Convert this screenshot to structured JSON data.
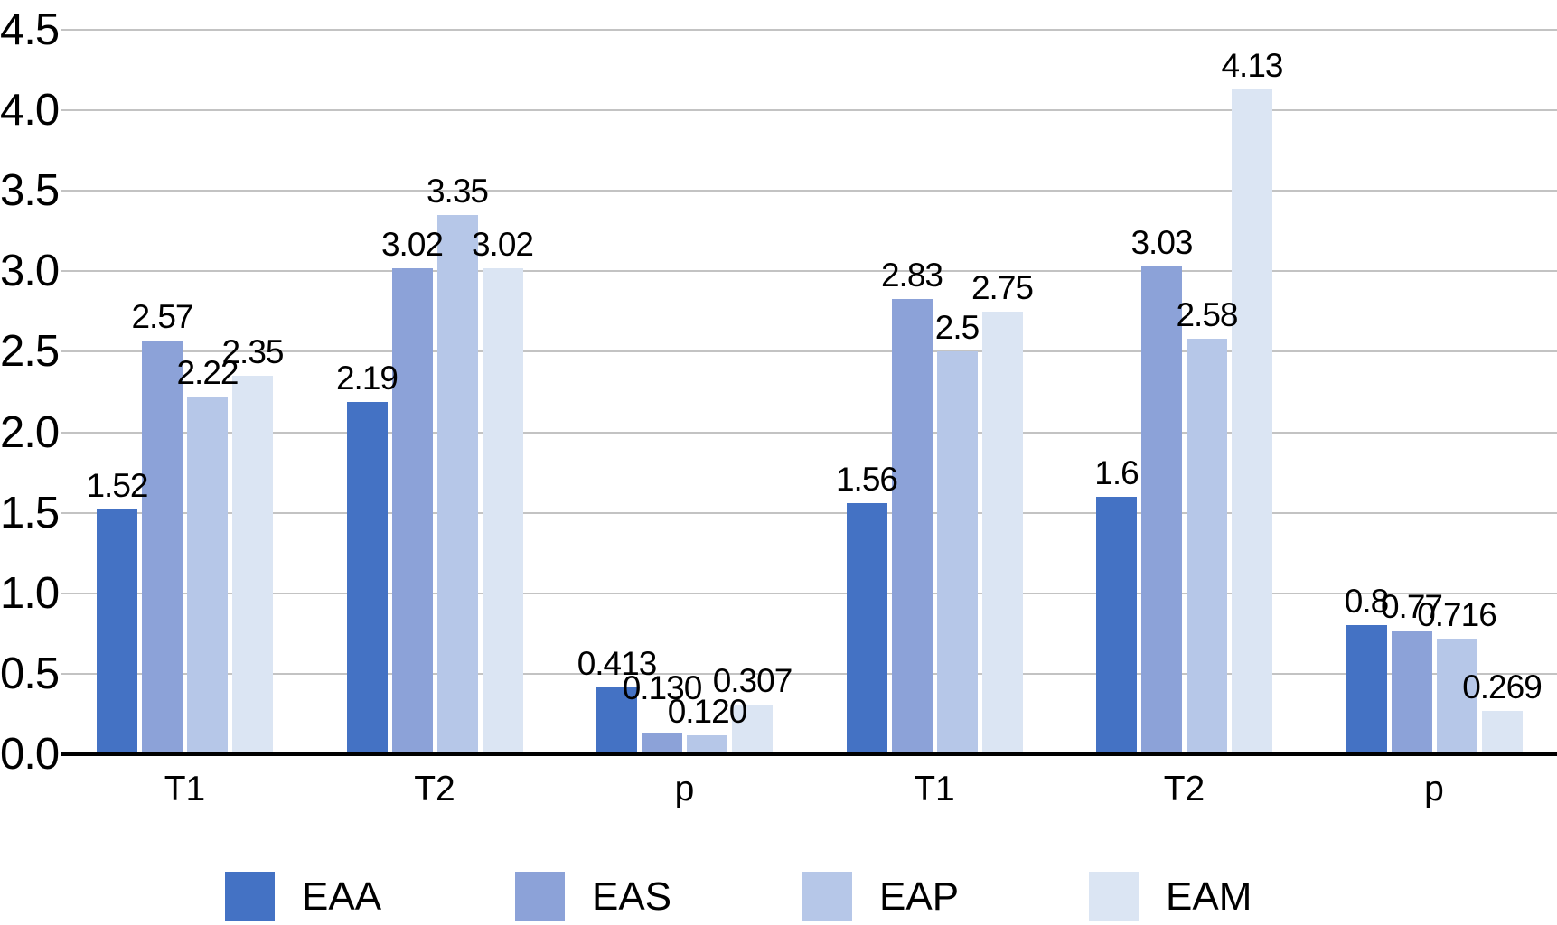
{
  "chart_data": {
    "type": "bar",
    "title": "",
    "xlabel": "",
    "ylabel": "",
    "categories": [
      "T1",
      "T2",
      "p",
      "T1",
      "T2",
      "p"
    ],
    "series": [
      {
        "name": "EAA",
        "color": "#4472C4",
        "values": [
          1.52,
          2.19,
          0.413,
          1.56,
          1.6,
          0.8
        ],
        "labels": [
          "1.52",
          "2.19",
          "0.413",
          "1.56",
          "1.6",
          "0.8"
        ]
      },
      {
        "name": "EAS",
        "color": "#8CA2D8",
        "values": [
          2.57,
          3.02,
          0.13,
          2.83,
          3.03,
          0.77
        ],
        "labels": [
          "2.57",
          "3.02",
          "0.130",
          "2.83",
          "3.03",
          "0.77"
        ]
      },
      {
        "name": "EAP",
        "color": "#B6C7E8",
        "values": [
          2.22,
          3.35,
          0.12,
          2.5,
          2.58,
          0.716
        ],
        "labels": [
          "2.22",
          "3.35",
          "0.120",
          "2.5",
          "2.58",
          "0.716"
        ]
      },
      {
        "name": "EAM",
        "color": "#DBE5F3",
        "values": [
          2.35,
          3.02,
          0.307,
          2.75,
          4.13,
          0.269
        ],
        "labels": [
          "2.35",
          "3.02",
          "0.307",
          "2.75",
          "4.13",
          "0.269"
        ]
      }
    ],
    "y_axis": {
      "min": 0,
      "max": 4.5,
      "step": 0.5,
      "tick_labels": [
        "0.0",
        "0.5",
        "1.0",
        "1.5",
        "2.0",
        "2.5",
        "3.0",
        "3.5",
        "4.0",
        "4.5"
      ]
    },
    "grid": true,
    "legend_position": "bottom",
    "legend_entries": [
      "EAA",
      "EAS",
      "EAP",
      "EAM"
    ],
    "colors": {
      "gridline": "#c3c3c3",
      "axis_line": "#000000",
      "text": "#000000",
      "background": "#ffffff"
    }
  }
}
